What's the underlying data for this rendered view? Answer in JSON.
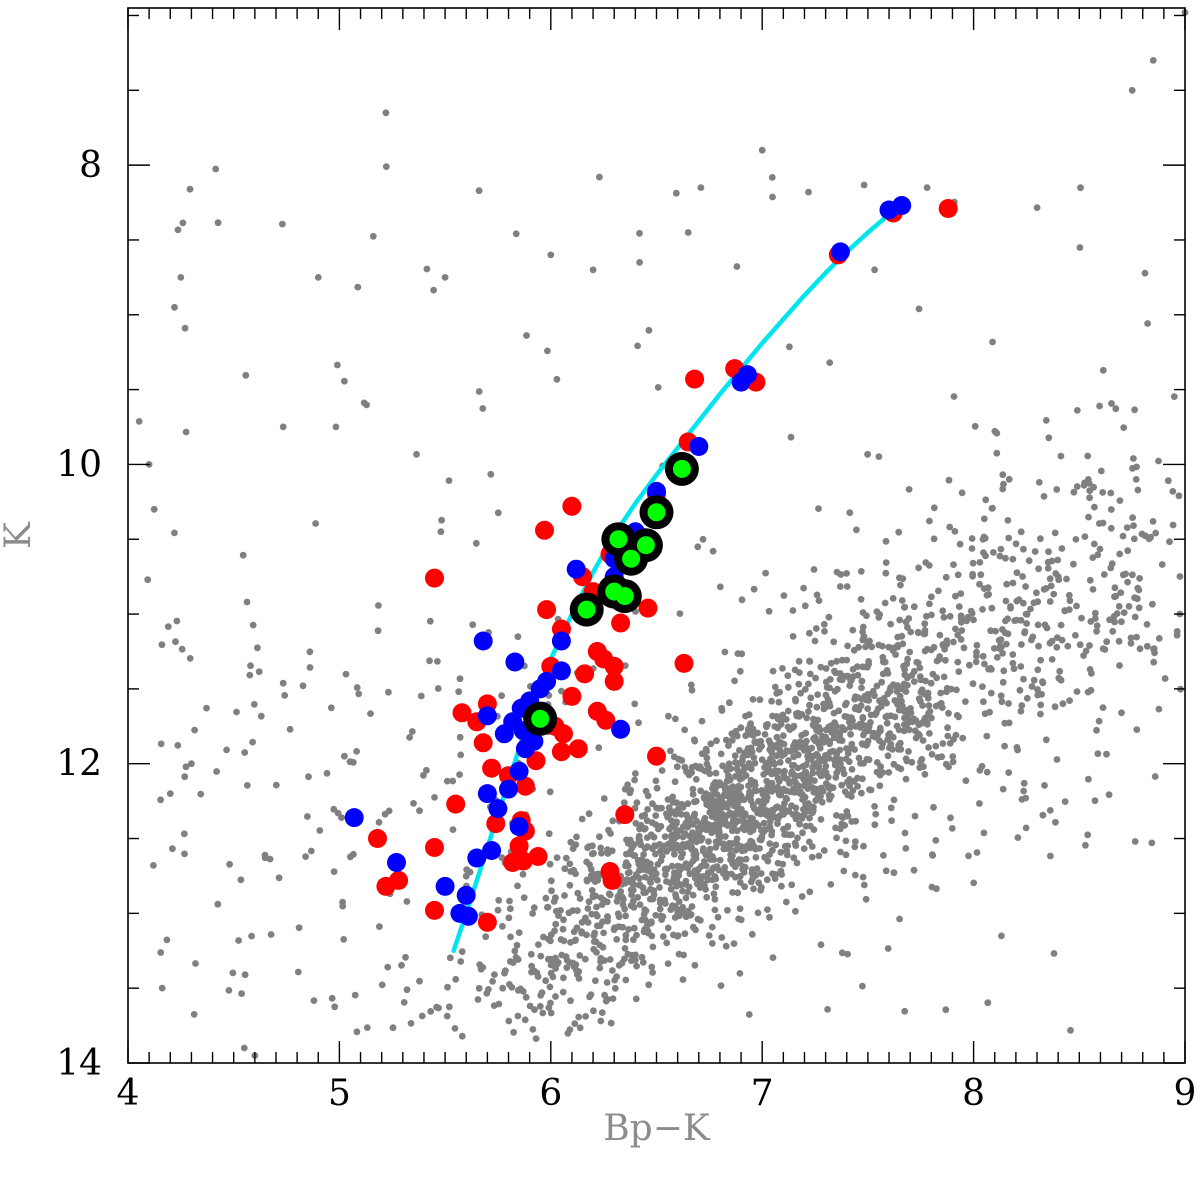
{
  "chart_data": {
    "type": "scatter",
    "xlabel": "Bp−K",
    "ylabel": "K",
    "xlim": [
      4,
      9
    ],
    "ylim": [
      14,
      6.95
    ],
    "y_inverted": true,
    "grid": false,
    "legend": "none",
    "x_ticks": [
      "4",
      "5",
      "6",
      "7",
      "8",
      "9"
    ],
    "y_ticks": [
      "8",
      "10",
      "12",
      "14"
    ],
    "colors": {
      "background_stars": "#808080",
      "red_points": "#ff0000",
      "blue_points": "#0000ff",
      "green_points": "#00ff00",
      "green_ring": "#000000",
      "isochrone": "#00e5ee",
      "axis_title": "#8c8c8c"
    },
    "background_field": {
      "approx_count": 3000,
      "description_center": [
        6.9,
        12.3
      ]
    },
    "series": [
      {
        "color": "#ff0000",
        "points": [
          [
            7.88,
            8.29
          ],
          [
            7.62,
            8.32
          ],
          [
            7.36,
            8.6
          ],
          [
            6.87,
            9.36
          ],
          [
            6.97,
            9.45
          ],
          [
            6.68,
            9.43
          ],
          [
            6.65,
            9.85
          ],
          [
            6.5,
            10.2
          ],
          [
            6.1,
            10.28
          ],
          [
            5.97,
            10.44
          ],
          [
            6.28,
            10.6
          ],
          [
            6.15,
            10.75
          ],
          [
            6.2,
            10.85
          ],
          [
            5.45,
            10.76
          ],
          [
            5.98,
            10.97
          ],
          [
            6.46,
            10.96
          ],
          [
            6.33,
            11.06
          ],
          [
            6.05,
            11.1
          ],
          [
            6.22,
            11.25
          ],
          [
            6.25,
            11.3
          ],
          [
            6.3,
            11.35
          ],
          [
            6.63,
            11.33
          ],
          [
            6.0,
            11.35
          ],
          [
            6.16,
            11.4
          ],
          [
            6.3,
            11.45
          ],
          [
            6.1,
            11.55
          ],
          [
            6.22,
            11.65
          ],
          [
            5.58,
            11.66
          ],
          [
            5.7,
            11.6
          ],
          [
            5.65,
            11.72
          ],
          [
            6.26,
            11.71
          ],
          [
            6.02,
            11.75
          ],
          [
            6.06,
            11.8
          ],
          [
            6.13,
            11.9
          ],
          [
            5.68,
            11.86
          ],
          [
            6.05,
            11.92
          ],
          [
            6.5,
            11.95
          ],
          [
            5.93,
            11.98
          ],
          [
            5.72,
            12.03
          ],
          [
            5.8,
            12.08
          ],
          [
            5.88,
            12.15
          ],
          [
            5.55,
            12.27
          ],
          [
            6.35,
            12.34
          ],
          [
            5.86,
            12.38
          ],
          [
            5.74,
            12.4
          ],
          [
            5.18,
            12.5
          ],
          [
            5.85,
            12.55
          ],
          [
            5.45,
            12.56
          ],
          [
            5.94,
            12.62
          ],
          [
            5.82,
            12.66
          ],
          [
            5.87,
            12.65
          ],
          [
            6.28,
            12.72
          ],
          [
            6.29,
            12.78
          ],
          [
            5.28,
            12.78
          ],
          [
            5.22,
            12.82
          ],
          [
            5.45,
            12.98
          ],
          [
            5.7,
            13.06
          ],
          [
            5.88,
            12.45
          ]
        ]
      },
      {
        "color": "#0000ff",
        "points": [
          [
            7.66,
            8.27
          ],
          [
            7.6,
            8.3
          ],
          [
            7.37,
            8.58
          ],
          [
            6.93,
            9.4
          ],
          [
            6.9,
            9.45
          ],
          [
            6.7,
            9.88
          ],
          [
            6.62,
            10.02
          ],
          [
            6.5,
            10.18
          ],
          [
            6.4,
            10.45
          ],
          [
            6.12,
            10.7
          ],
          [
            6.35,
            10.6
          ],
          [
            6.3,
            10.63
          ],
          [
            6.3,
            10.75
          ],
          [
            6.17,
            10.95
          ],
          [
            5.68,
            11.18
          ],
          [
            6.05,
            11.18
          ],
          [
            5.83,
            11.32
          ],
          [
            6.05,
            11.38
          ],
          [
            5.98,
            11.45
          ],
          [
            5.95,
            11.5
          ],
          [
            5.9,
            11.58
          ],
          [
            5.96,
            11.65
          ],
          [
            5.86,
            11.63
          ],
          [
            5.7,
            11.68
          ],
          [
            5.82,
            11.72
          ],
          [
            5.87,
            11.78
          ],
          [
            5.78,
            11.8
          ],
          [
            5.92,
            11.85
          ],
          [
            5.88,
            11.9
          ],
          [
            6.33,
            11.77
          ],
          [
            5.85,
            12.05
          ],
          [
            5.8,
            12.17
          ],
          [
            5.7,
            12.2
          ],
          [
            5.75,
            12.3
          ],
          [
            5.85,
            12.42
          ],
          [
            5.07,
            12.36
          ],
          [
            5.72,
            12.58
          ],
          [
            5.65,
            12.63
          ],
          [
            5.27,
            12.66
          ],
          [
            5.5,
            12.82
          ],
          [
            5.6,
            12.88
          ],
          [
            5.61,
            13.02
          ],
          [
            5.57,
            13.0
          ]
        ]
      },
      {
        "color": "#00ff00",
        "ring_color": "#000000",
        "points": [
          [
            6.62,
            10.03
          ],
          [
            6.5,
            10.32
          ],
          [
            6.32,
            10.5
          ],
          [
            6.45,
            10.54
          ],
          [
            6.38,
            10.63
          ],
          [
            6.3,
            10.85
          ],
          [
            6.35,
            10.88
          ],
          [
            6.17,
            10.97
          ],
          [
            5.95,
            11.7
          ]
        ]
      }
    ],
    "isochrone": {
      "color": "#00e5ee",
      "x": [
        5.54,
        5.6,
        5.7,
        5.8,
        5.9,
        6.0,
        6.1,
        6.2,
        6.3,
        6.4,
        6.5,
        6.6,
        6.7,
        6.8,
        6.9,
        7.0,
        7.1,
        7.2,
        7.3,
        7.4,
        7.5,
        7.6,
        7.63
      ],
      "y": [
        13.25,
        13.0,
        12.56,
        12.12,
        11.68,
        11.3,
        11.0,
        10.72,
        10.47,
        10.26,
        10.07,
        9.89,
        9.71,
        9.53,
        9.36,
        9.19,
        9.03,
        8.87,
        8.72,
        8.58,
        8.45,
        8.33,
        8.3
      ]
    }
  }
}
